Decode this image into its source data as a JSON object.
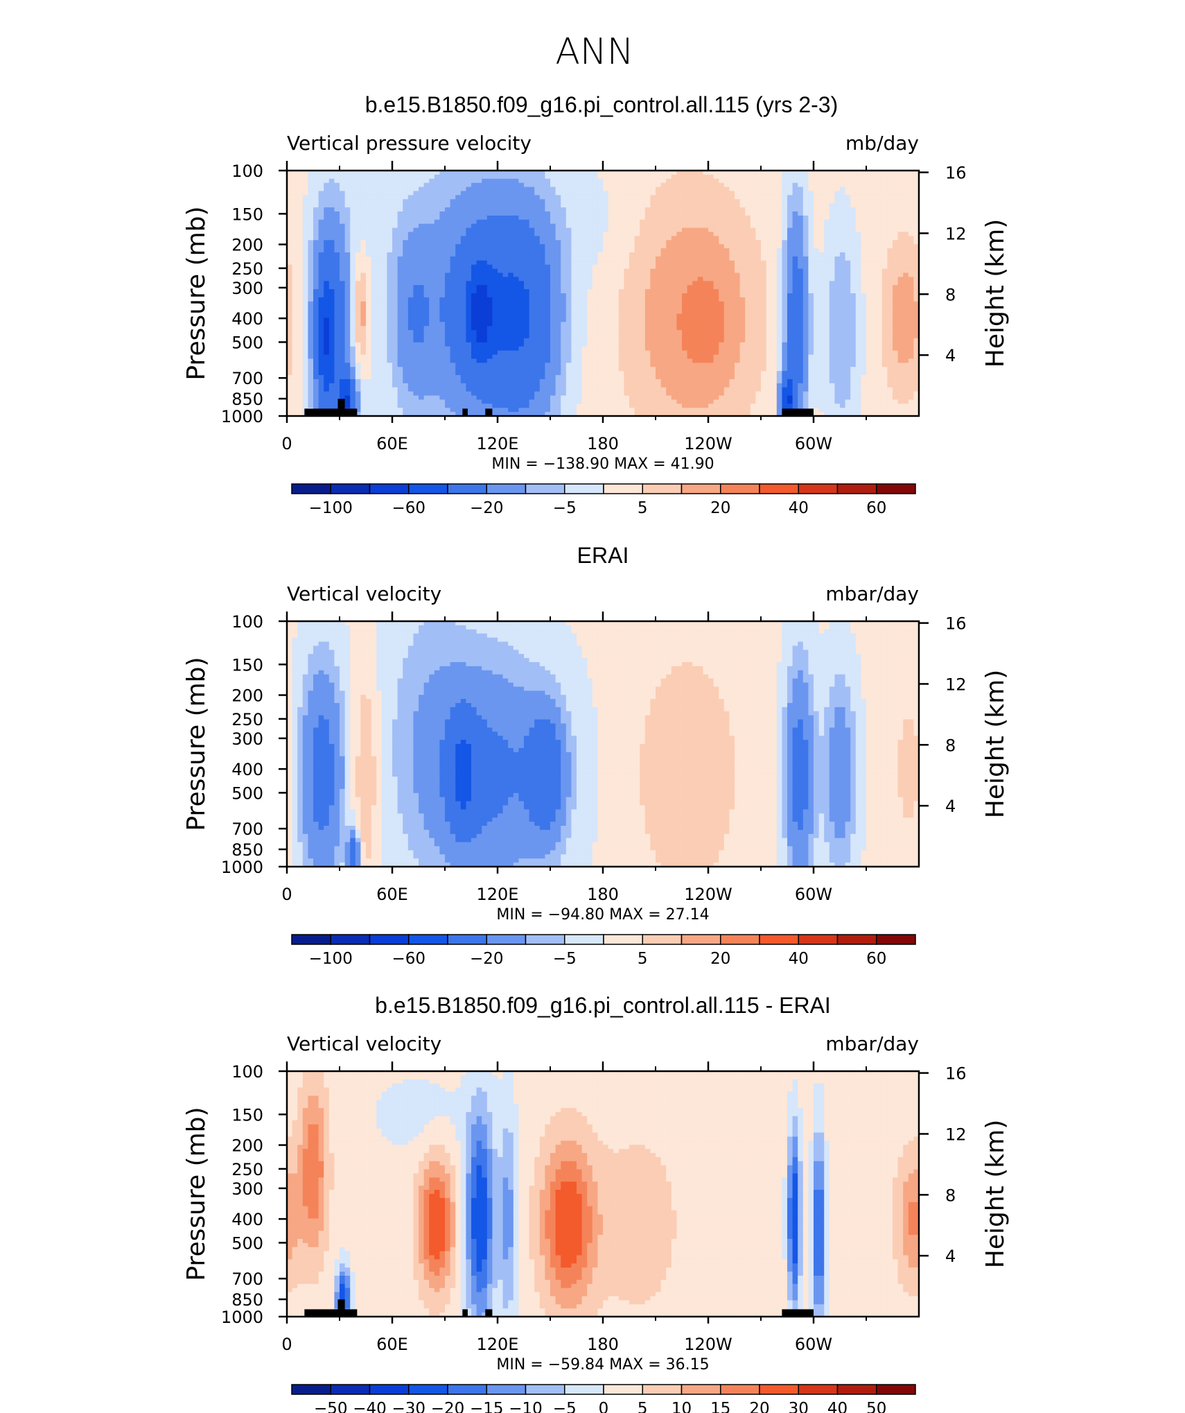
{
  "figure_title": "ANN",
  "panels": [
    {
      "title": "b.e15.B1850.f09_g16.pi_control.all.115 (yrs 2-3)",
      "left_label": "Vertical pressure velocity",
      "right_label": "mb/day",
      "y_axis_label": "Pressure (mb)",
      "y2_axis_label": "Height (km)",
      "stats": "MIN = −138.90   MAX =   41.90",
      "colorbar_labels": [
        "−100",
        "−60",
        "−20",
        "−5",
        "5",
        "20",
        "40",
        "60"
      ],
      "fields": {
        "blobs": [
          {
            "lon": 25,
            "p": 420,
            "wl": 11,
            "hl": 1.05,
            "v": -32
          },
          {
            "lon": 22,
            "p": 500,
            "wl": 5,
            "hl": 0.6,
            "v": -35
          },
          {
            "lon": 34,
            "p": 880,
            "wl": 5,
            "hl": 0.25,
            "v": -55
          },
          {
            "lon": 42,
            "p": 380,
            "wl": 5,
            "hl": 0.5,
            "v": 15
          },
          {
            "lon": 72,
            "p": 400,
            "wl": 11,
            "hl": 0.8,
            "v": -14
          },
          {
            "lon": 115,
            "p": 380,
            "wl": 28,
            "hl": 1.0,
            "v": -32
          },
          {
            "lon": 110,
            "p": 380,
            "wl": 7,
            "hl": 0.4,
            "v": -40
          },
          {
            "lon": 138,
            "p": 400,
            "wl": 18,
            "hl": 1.0,
            "v": -22
          },
          {
            "lon": 95,
            "p": 300,
            "wl": 55,
            "hl": 1.5,
            "v": -8
          },
          {
            "lon": 230,
            "p": 390,
            "wl": 36,
            "hl": 1.1,
            "v": 14
          },
          {
            "lon": 238,
            "p": 420,
            "wl": 14,
            "hl": 0.45,
            "v": 14
          },
          {
            "lon": 290,
            "p": 420,
            "wl": 7,
            "hl": 1.1,
            "v": -32
          },
          {
            "lon": 285,
            "p": 880,
            "wl": 4,
            "hl": 0.25,
            "v": -55
          },
          {
            "lon": 316,
            "p": 450,
            "wl": 10,
            "hl": 1.0,
            "v": -12
          },
          {
            "lon": 352,
            "p": 400,
            "wl": 12,
            "hl": 0.7,
            "v": 12
          },
          {
            "lon": 175,
            "p": 160,
            "wl": 25,
            "hl": 0.6,
            "v": -3
          }
        ],
        "bg": 2
      },
      "topography": [
        [
          10,
          40,
          30
        ],
        [
          29,
          33,
          70
        ],
        [
          100,
          103,
          30
        ],
        [
          113,
          117,
          30
        ],
        [
          282,
          300,
          30
        ]
      ]
    },
    {
      "title": "ERAI",
      "left_label": "Vertical velocity",
      "right_label": "mbar/day",
      "y_axis_label": "Pressure (mb)",
      "y2_axis_label": "Height (km)",
      "stats": "MIN =  −94.80   MAX =   27.14",
      "colorbar_labels": [
        "−100",
        "−60",
        "−20",
        "−5",
        "5",
        "20",
        "40",
        "60"
      ],
      "fields": {
        "blobs": [
          {
            "lon": 20,
            "p": 420,
            "wl": 12,
            "hl": 1.0,
            "v": -28
          },
          {
            "lon": 38,
            "p": 900,
            "wl": 3,
            "hl": 0.2,
            "v": -40
          },
          {
            "lon": 45,
            "p": 420,
            "wl": 7,
            "hl": 1.0,
            "v": 10
          },
          {
            "lon": 115,
            "p": 420,
            "wl": 38,
            "hl": 1.05,
            "v": -24
          },
          {
            "lon": 100,
            "p": 420,
            "wl": 8,
            "hl": 0.5,
            "v": -30
          },
          {
            "lon": 148,
            "p": 420,
            "wl": 10,
            "hl": 0.55,
            "v": -30
          },
          {
            "lon": 228,
            "p": 420,
            "wl": 30,
            "hl": 1.15,
            "v": 9
          },
          {
            "lon": 292,
            "p": 420,
            "wl": 8,
            "hl": 1.0,
            "v": -28
          },
          {
            "lon": 315,
            "p": 420,
            "wl": 9,
            "hl": 0.9,
            "v": -18
          },
          {
            "lon": 355,
            "p": 400,
            "wl": 8,
            "hl": 0.6,
            "v": 8
          },
          {
            "lon": 80,
            "p": 220,
            "wl": 25,
            "hl": 1.4,
            "v": -6
          }
        ],
        "bg": 1
      },
      "topography": []
    },
    {
      "title": "b.e15.B1850.f09_g16.pi_control.all.115 - ERAI",
      "left_label": "Vertical velocity",
      "right_label": "mbar/day",
      "y_axis_label": "Pressure (mb)",
      "y2_axis_label": "Height (km)",
      "stats": "MIN =  −59.84   MAX =   36.15",
      "colorbar_labels": [
        "−50",
        "−40",
        "−30",
        "−20",
        "−15",
        "−10",
        "−5",
        "0",
        "5",
        "10",
        "15",
        "20",
        "30",
        "40",
        "50"
      ],
      "fields": {
        "blobs": [
          {
            "lon": 15,
            "p": 250,
            "wl": 8,
            "hl": 0.8,
            "v": 18
          },
          {
            "lon": 32,
            "p": 850,
            "wl": 4,
            "hl": 0.3,
            "v": -28
          },
          {
            "lon": 85,
            "p": 420,
            "wl": 10,
            "hl": 0.6,
            "v": 24
          },
          {
            "lon": 110,
            "p": 400,
            "wl": 8,
            "hl": 1.0,
            "v": -28
          },
          {
            "lon": 126,
            "p": 400,
            "wl": 5,
            "hl": 1.0,
            "v": -14
          },
          {
            "lon": 160,
            "p": 420,
            "wl": 15,
            "hl": 0.75,
            "v": 24
          },
          {
            "lon": 200,
            "p": 420,
            "wl": 25,
            "hl": 0.9,
            "v": 6
          },
          {
            "lon": 289,
            "p": 400,
            "wl": 3.5,
            "hl": 0.8,
            "v": -30
          },
          {
            "lon": 303,
            "p": 450,
            "wl": 3.5,
            "hl": 0.9,
            "v": -25
          },
          {
            "lon": 357,
            "p": 400,
            "wl": 10,
            "hl": 0.6,
            "v": 14
          },
          {
            "lon": 75,
            "p": 150,
            "wl": 30,
            "hl": 0.4,
            "v": -4
          }
        ],
        "bg": 2
      },
      "topography": [
        [
          10,
          40,
          30
        ],
        [
          29,
          33,
          70
        ],
        [
          100,
          103,
          30
        ],
        [
          113,
          117,
          30
        ],
        [
          282,
          300,
          30
        ]
      ]
    }
  ],
  "colorbar_colors": {
    "main": [
      "#081d8c",
      "#0a2db4",
      "#0a3ed7",
      "#1456e6",
      "#3c76ea",
      "#6a96f0",
      "#a2bef6",
      "#d6e6fb",
      "#fde7d8",
      "#fbcdb4",
      "#f7a784",
      "#f58359",
      "#f35a2c",
      "#d6361a",
      "#b01d0e",
      "#840707"
    ],
    "diff": [
      "#081d8c",
      "#0a2db4",
      "#0a3ed7",
      "#1456e6",
      "#3c76ea",
      "#6a96f0",
      "#a2bef6",
      "#d6e6fb",
      "#fde7d8",
      "#fbcdb4",
      "#f7a784",
      "#f58359",
      "#f35a2c",
      "#d6361a",
      "#b01d0e",
      "#840707"
    ]
  },
  "axes": {
    "x_tick_labels": [
      "0",
      "60E",
      "120E",
      "180",
      "120W",
      "60W"
    ],
    "y_tick_labels": [
      "100",
      "150",
      "200",
      "250",
      "300",
      "400",
      "500",
      "700",
      "850",
      "1000"
    ],
    "y2_tick_labels": [
      "16",
      "12",
      "8",
      "4"
    ]
  },
  "chart_data": [
    {
      "type": "heatmap",
      "title": "b.e15.B1850.f09_g16.pi_control.all.115 (yrs 2-3)",
      "x": "longitude",
      "xlim": [
        0,
        360
      ],
      "x_ticks": [
        "0",
        "60E",
        "120E",
        "180",
        "120W",
        "60W"
      ],
      "ylabel": "Pressure (mb)",
      "ylim": [
        1000,
        100
      ],
      "y_scale": "log",
      "y2label": "Height (km)",
      "variable": "Vertical pressure velocity",
      "units": "mb/day",
      "min": -138.9,
      "max": 41.9,
      "levels": [
        -100,
        -80,
        -60,
        -40,
        -20,
        -10,
        -5,
        0,
        5,
        10,
        20,
        30,
        40,
        50,
        60
      ]
    },
    {
      "type": "heatmap",
      "title": "ERAI",
      "x": "longitude",
      "xlim": [
        0,
        360
      ],
      "ylabel": "Pressure (mb)",
      "ylim": [
        1000,
        100
      ],
      "y_scale": "log",
      "y2label": "Height (km)",
      "variable": "Vertical velocity",
      "units": "mbar/day",
      "min": -94.8,
      "max": 27.14,
      "levels": [
        -100,
        -80,
        -60,
        -40,
        -20,
        -10,
        -5,
        0,
        5,
        10,
        20,
        30,
        40,
        50,
        60
      ]
    },
    {
      "type": "heatmap",
      "title": "b.e15.B1850.f09_g16.pi_control.all.115 - ERAI",
      "x": "longitude",
      "xlim": [
        0,
        360
      ],
      "ylabel": "Pressure (mb)",
      "ylim": [
        1000,
        100
      ],
      "y_scale": "log",
      "y2label": "Height (km)",
      "variable": "Vertical velocity",
      "units": "mbar/day",
      "min": -59.84,
      "max": 36.15,
      "levels": [
        -50,
        -40,
        -30,
        -20,
        -15,
        -10,
        -5,
        0,
        5,
        10,
        15,
        20,
        30,
        40,
        50
      ]
    }
  ]
}
